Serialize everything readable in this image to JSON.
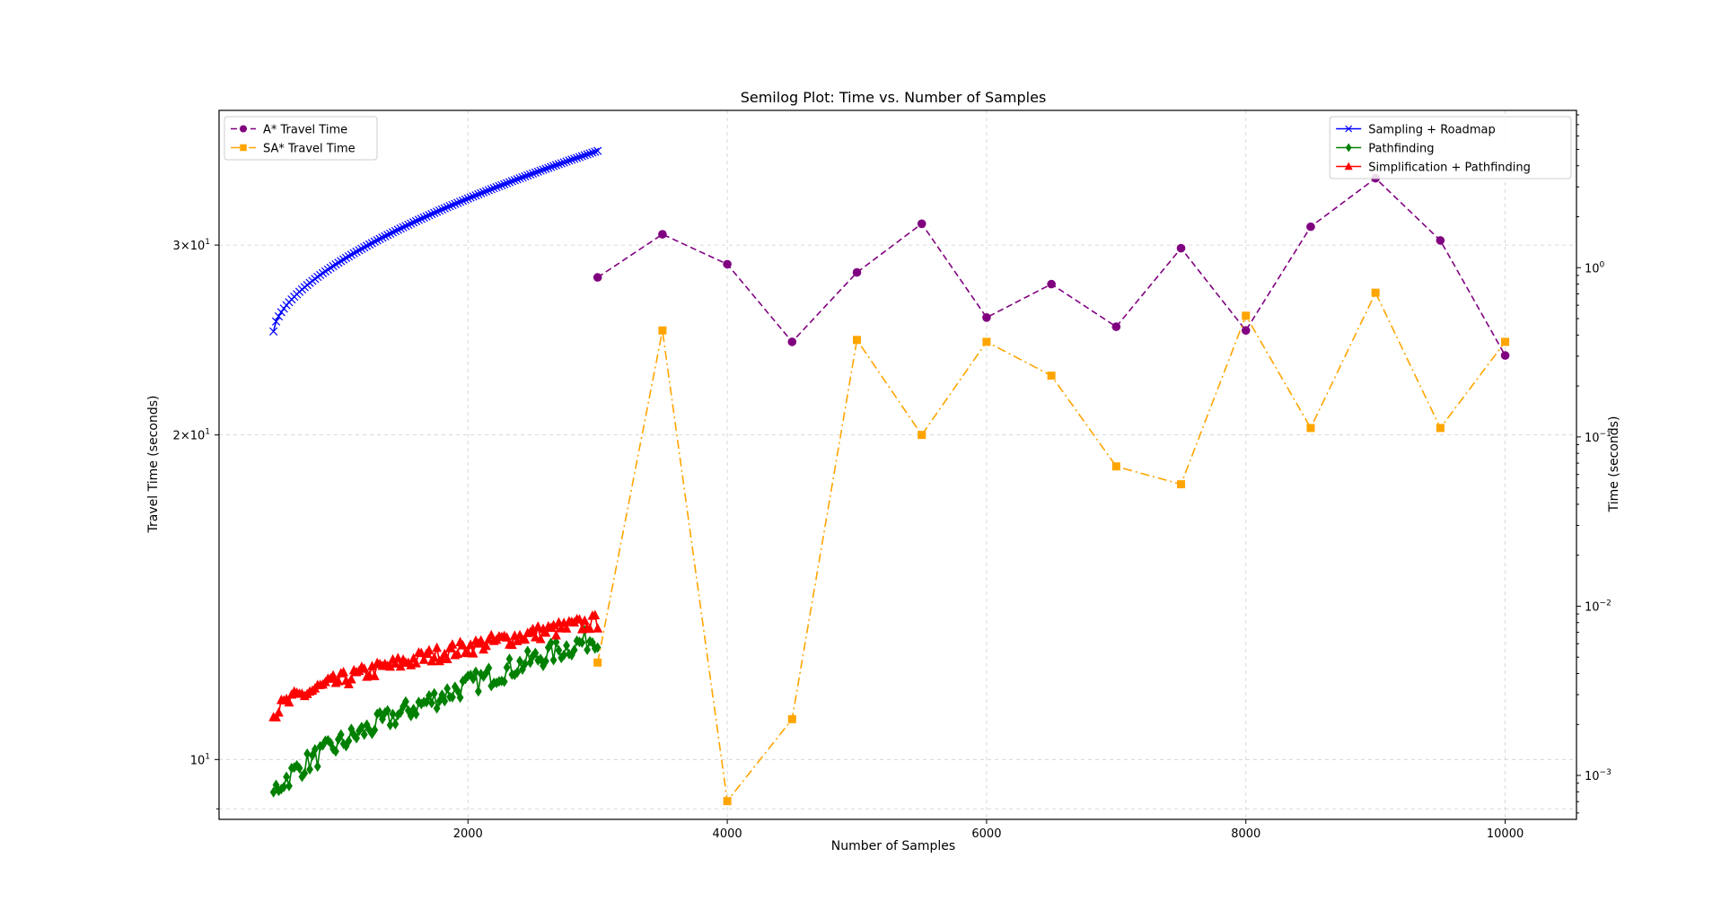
{
  "chart_data": {
    "type": "line",
    "title": "Semilog Plot: Time vs. Number of Samples",
    "xlabel": "Number of Samples",
    "ylabel_left": "Travel Time (seconds)",
    "ylabel_right": "Time (seconds)",
    "xlim": [
      80,
      10550
    ],
    "ylim_left": [
      8.8,
      40.0
    ],
    "ylim_right": [
      0.00055,
      8.5
    ],
    "left_scale": "log",
    "right_scale": "log",
    "grid": true,
    "x_ticks": [
      {
        "value": 2000,
        "label": "2000"
      },
      {
        "value": 4000,
        "label": "4000"
      },
      {
        "value": 6000,
        "label": "6000"
      },
      {
        "value": 8000,
        "label": "8000"
      },
      {
        "value": 10000,
        "label": "10000"
      }
    ],
    "y_ticks_left": [
      {
        "value": 10,
        "base": "10",
        "exp": "1"
      },
      {
        "value": 20,
        "base": "2×10",
        "exp": "1"
      },
      {
        "value": 30,
        "base": "3×10",
        "exp": "1"
      }
    ],
    "y_ticks_right": [
      {
        "value": 0.001,
        "base": "10",
        "exp": "−3"
      },
      {
        "value": 0.01,
        "base": "10",
        "exp": "−2"
      },
      {
        "value": 0.1,
        "base": "10",
        "exp": "−1"
      },
      {
        "value": 1,
        "base": "10",
        "exp": "0"
      }
    ],
    "legend_left_placement": "upper left",
    "legend_right_placement": "upper right",
    "series_left": [
      {
        "name": "A* Travel Time",
        "color": "#800080",
        "marker": "circle",
        "dash": "7,4",
        "x": [
          3000,
          3500,
          4000,
          4500,
          5000,
          5500,
          6000,
          6500,
          7000,
          7500,
          8000,
          8500,
          9000,
          9500,
          10000
        ],
        "values": [
          28.0,
          30.7,
          28.8,
          24.4,
          28.3,
          31.4,
          25.7,
          27.6,
          25.2,
          29.8,
          25.0,
          31.2,
          34.6,
          30.3,
          23.7
        ]
      },
      {
        "name": "SA* Travel Time",
        "color": "#FFA500",
        "marker": "square",
        "dash": "10,4,2,4",
        "x": [
          3000,
          3500,
          4000,
          4500,
          5000,
          5500,
          6000,
          6500,
          7000,
          7500,
          8000,
          8500,
          9000,
          9500,
          10000
        ],
        "values": [
          12.3,
          25.0,
          9.15,
          10.9,
          24.5,
          20.0,
          24.4,
          22.7,
          18.7,
          18.0,
          25.8,
          20.3,
          27.1,
          20.3,
          24.4
        ]
      }
    ],
    "series_right": [
      {
        "name": "Sampling + Roadmap",
        "color": "#0000FF",
        "marker": "x",
        "start": 500,
        "end": 3000,
        "n": 126,
        "y_start": 0.42,
        "y_end": 4.9,
        "curve": 0.6,
        "noise": 0.0
      },
      {
        "name": "Pathfinding",
        "color": "#008000",
        "marker": "diamond",
        "start": 500,
        "end": 3000,
        "n": 126,
        "y_start": 0.00078,
        "y_end": 0.0066,
        "curve": 0.72,
        "noise": 0.13
      },
      {
        "name": "Simplification + Pathfinding",
        "color": "#FF0000",
        "marker": "triangle",
        "start": 500,
        "end": 3000,
        "n": 126,
        "y_start": 0.00225,
        "y_end": 0.0081,
        "curve": 0.62,
        "noise": 0.09
      }
    ]
  }
}
